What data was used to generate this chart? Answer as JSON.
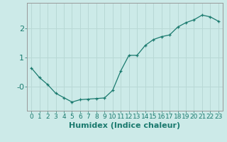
{
  "x": [
    0,
    1,
    2,
    3,
    4,
    5,
    6,
    7,
    8,
    9,
    10,
    11,
    12,
    13,
    14,
    15,
    16,
    17,
    18,
    19,
    20,
    21,
    22,
    23
  ],
  "y": [
    0.65,
    0.32,
    0.08,
    -0.22,
    -0.37,
    -0.52,
    -0.44,
    -0.42,
    -0.4,
    -0.38,
    -0.12,
    0.55,
    1.08,
    1.08,
    1.42,
    1.62,
    1.72,
    1.78,
    2.05,
    2.2,
    2.3,
    2.46,
    2.4,
    2.25
  ],
  "xlabel": "Humidex (Indice chaleur)",
  "ytick_labels": [
    "-0",
    "1",
    "2"
  ],
  "ytick_vals": [
    0,
    1,
    2
  ],
  "ylim": [
    -0.82,
    2.88
  ],
  "xlim": [
    -0.5,
    23.5
  ],
  "line_color": "#1a7a6e",
  "marker": "+",
  "bg_color": "#cceae8",
  "grid_color": "#b8d8d5",
  "xlabel_fontsize": 8,
  "ytick_fontsize": 8,
  "xtick_fontsize": 6.5
}
